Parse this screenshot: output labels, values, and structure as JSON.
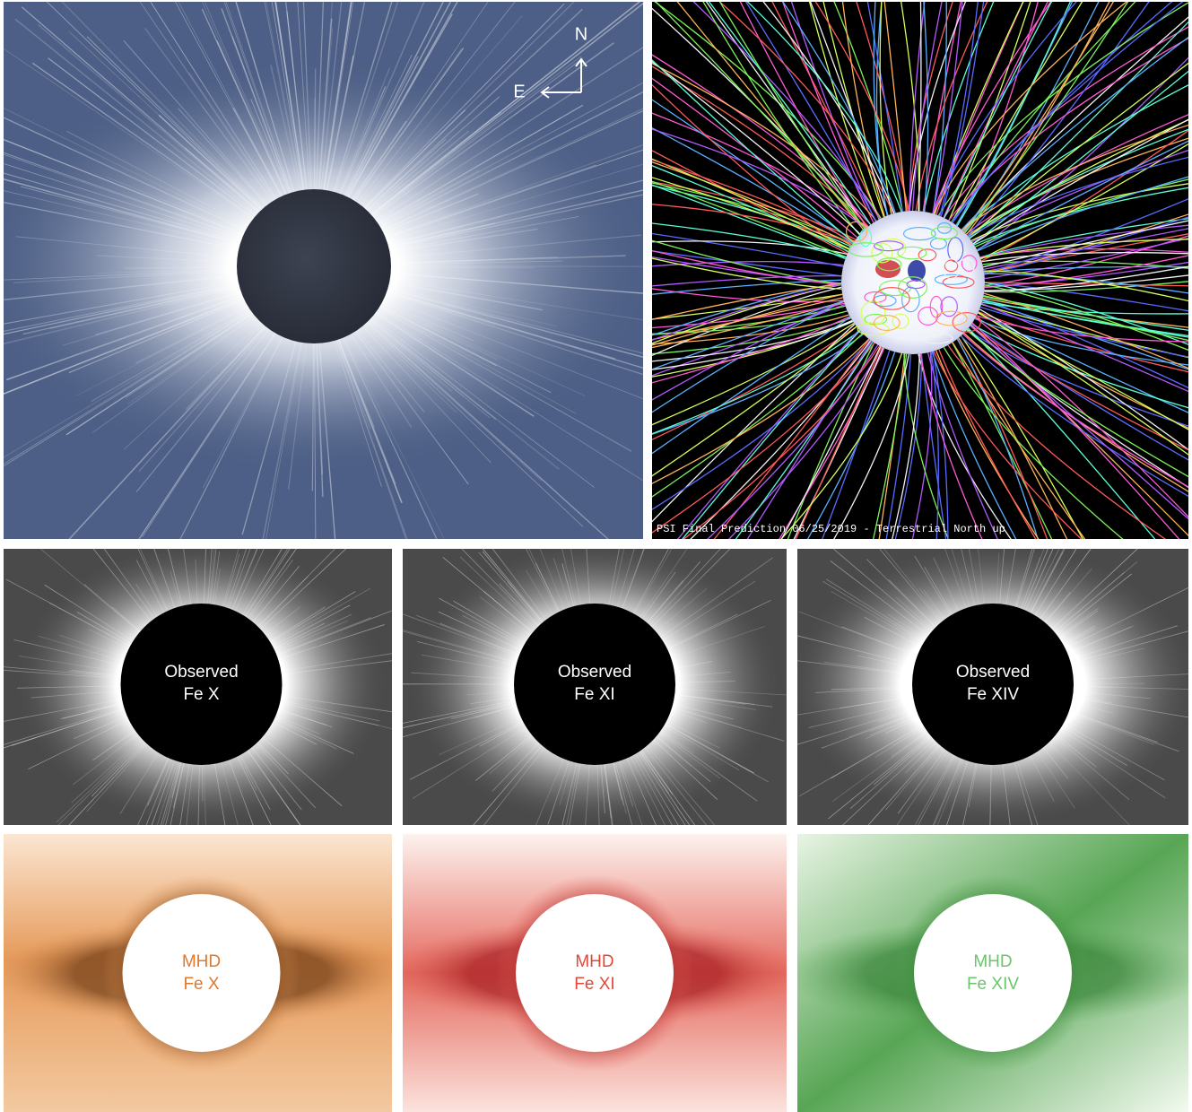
{
  "top_left": {
    "compass": {
      "north": "N",
      "east": "E"
    }
  },
  "top_right": {
    "caption": "PSI Final Prediction 06/25/2019 - Terrestrial North up"
  },
  "observed": [
    {
      "title": "Observed",
      "line": "Fe X"
    },
    {
      "title": "Observed",
      "line": "Fe XI"
    },
    {
      "title": "Observed",
      "line": "Fe XIV"
    }
  ],
  "mhd": [
    {
      "title": "MHD",
      "line": "Fe X"
    },
    {
      "title": "MHD",
      "line": "Fe XI"
    },
    {
      "title": "MHD",
      "line": "Fe XIV"
    }
  ]
}
